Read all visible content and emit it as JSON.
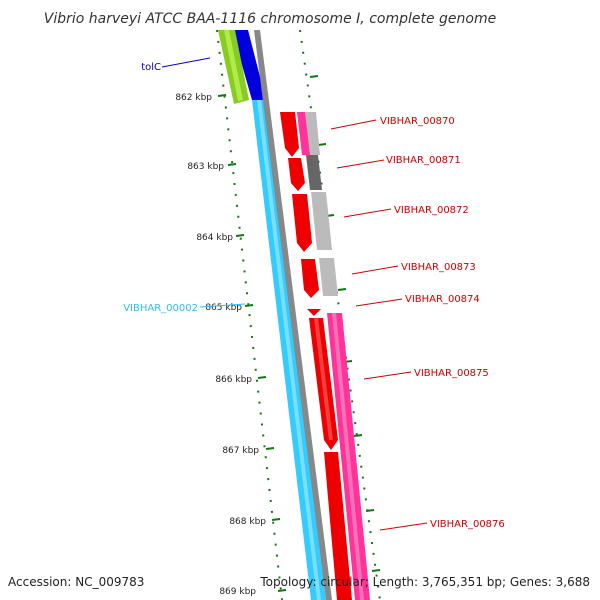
{
  "title": "Vibrio harveyi ATCC BAA-1116 chromosome I, complete genome",
  "footer": {
    "accession": "Accession: NC_009783",
    "topology": "Topology: circular; Length: 3,765,351 bp; Genes: 3,688"
  },
  "ticks": [
    "862 kbp",
    "863 kbp",
    "864 kbp",
    "865 kbp",
    "866 kbp",
    "867 kbp",
    "868 kbp",
    "869 kbp"
  ],
  "gene_labels": {
    "tolc": "tolC",
    "vibhar_00002": "VIBHAR_00002",
    "vibhar_00870": "VIBHAR_00870",
    "vibhar_00871": "VIBHAR_00871",
    "vibhar_00872": "VIBHAR_00872",
    "vibhar_00873": "VIBHAR_00873",
    "vibhar_00874": "VIBHAR_00874",
    "vibhar_00875": "VIBHAR_00875",
    "vibhar_00876": "VIBHAR_00876"
  },
  "colors": {
    "cds": "#ee0000",
    "mrna": "#ff3399",
    "gene_grey": "#bbbbbb",
    "gene_dark": "#666666",
    "backbone": "#888888",
    "cyan_feature": "#33ccff",
    "blue_feature": "#0000dd",
    "green_feature": "#88cc22",
    "tick_green": "#117711",
    "label_red": "#cc0000",
    "label_cyan": "#33bbee",
    "label_blue": "#0000cc"
  }
}
